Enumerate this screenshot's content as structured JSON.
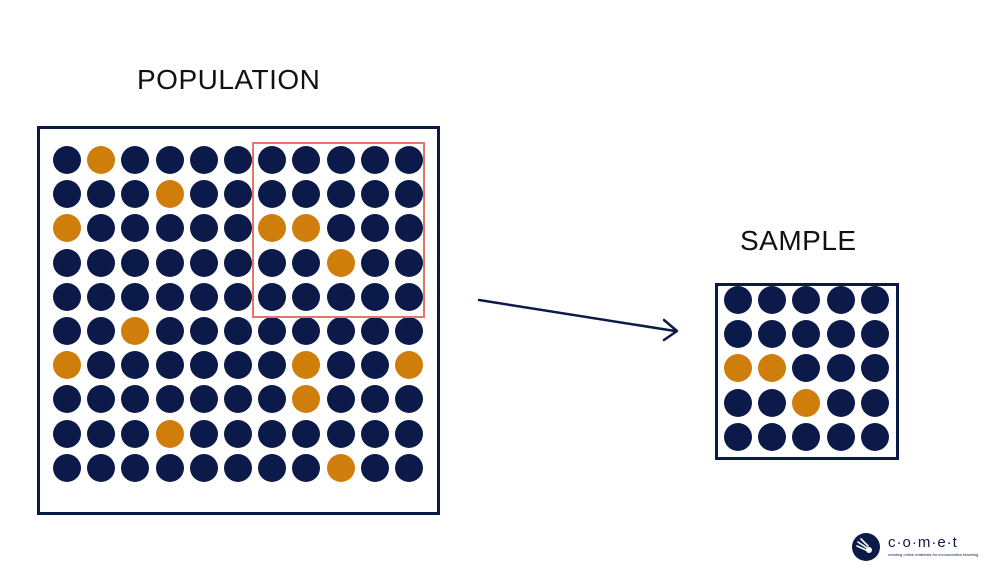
{
  "population": {
    "title": "POPULATION",
    "grid": [
      [
        0,
        1,
        0,
        0,
        0,
        0,
        0,
        0,
        0,
        0,
        0
      ],
      [
        0,
        0,
        0,
        1,
        0,
        0,
        0,
        0,
        0,
        0,
        0
      ],
      [
        1,
        0,
        0,
        0,
        0,
        0,
        1,
        1,
        0,
        0,
        0
      ],
      [
        0,
        0,
        0,
        0,
        0,
        0,
        0,
        0,
        1,
        0,
        0
      ],
      [
        0,
        0,
        0,
        0,
        0,
        0,
        0,
        0,
        0,
        0,
        0
      ],
      [
        0,
        0,
        1,
        0,
        0,
        0,
        0,
        0,
        0,
        0,
        0
      ],
      [
        1,
        0,
        0,
        0,
        0,
        0,
        0,
        1,
        0,
        0,
        1
      ],
      [
        0,
        0,
        0,
        0,
        0,
        0,
        0,
        1,
        0,
        0,
        0
      ],
      [
        0,
        0,
        0,
        1,
        0,
        0,
        0,
        0,
        0,
        0,
        0
      ],
      [
        0,
        0,
        0,
        0,
        0,
        0,
        0,
        0,
        1,
        0,
        0
      ]
    ]
  },
  "sample": {
    "title": "SAMPLE",
    "grid": [
      [
        0,
        0,
        0,
        0,
        0
      ],
      [
        0,
        0,
        0,
        0,
        0
      ],
      [
        1,
        1,
        0,
        0,
        0
      ],
      [
        0,
        0,
        1,
        0,
        0
      ],
      [
        0,
        0,
        0,
        0,
        0
      ]
    ]
  },
  "colors": {
    "dot_default": "#0c1a4a",
    "dot_highlight": "#cf7d0b",
    "frame": "#0c1a4a",
    "sample_box": "#e4776a"
  },
  "logo": {
    "icon": "comet-logo-icon",
    "wordmark": "c·o·m·e·t",
    "tagline": "creating online materials for econometrics teaching"
  }
}
